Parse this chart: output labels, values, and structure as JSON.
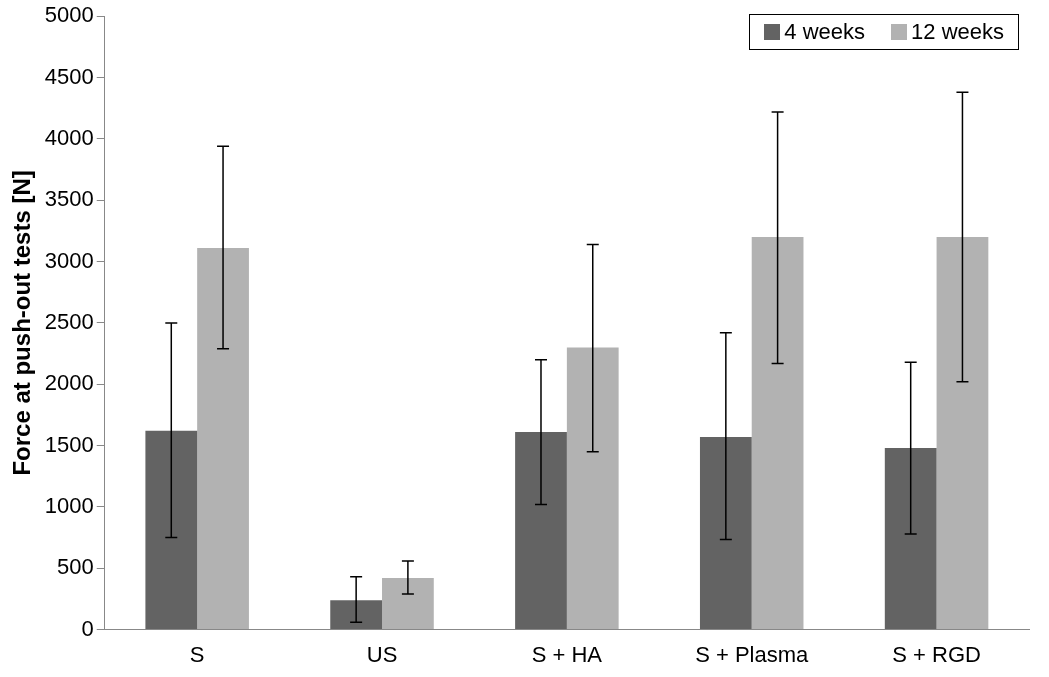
{
  "chart_data": {
    "type": "bar",
    "ylabel": "Force at push-out tests [N]",
    "categories": [
      "S",
      "US",
      "S + HA",
      "S + Plasma",
      "S + RGD"
    ],
    "series": [
      {
        "name": "4 weeks",
        "color": "#636363",
        "values": [
          1620,
          240,
          1610,
          1570,
          1480
        ],
        "errors": [
          [
            750,
            2500
          ],
          [
            60,
            430
          ],
          [
            1020,
            2200
          ],
          [
            735,
            2420
          ],
          [
            780,
            2180
          ]
        ]
      },
      {
        "name": "12 weeks",
        "color": "#b2b2b2",
        "values": [
          3110,
          420,
          2300,
          3200,
          3200
        ],
        "errors": [
          [
            2290,
            3940
          ],
          [
            290,
            560
          ],
          [
            1450,
            3140
          ],
          [
            2170,
            4220
          ],
          [
            2020,
            4380
          ]
        ]
      }
    ],
    "ylim": [
      0,
      5000
    ],
    "yticks": [
      0,
      500,
      1000,
      1500,
      2000,
      2500,
      3000,
      3500,
      4000,
      4500,
      5000
    ],
    "grid": false,
    "legend": "top right"
  }
}
